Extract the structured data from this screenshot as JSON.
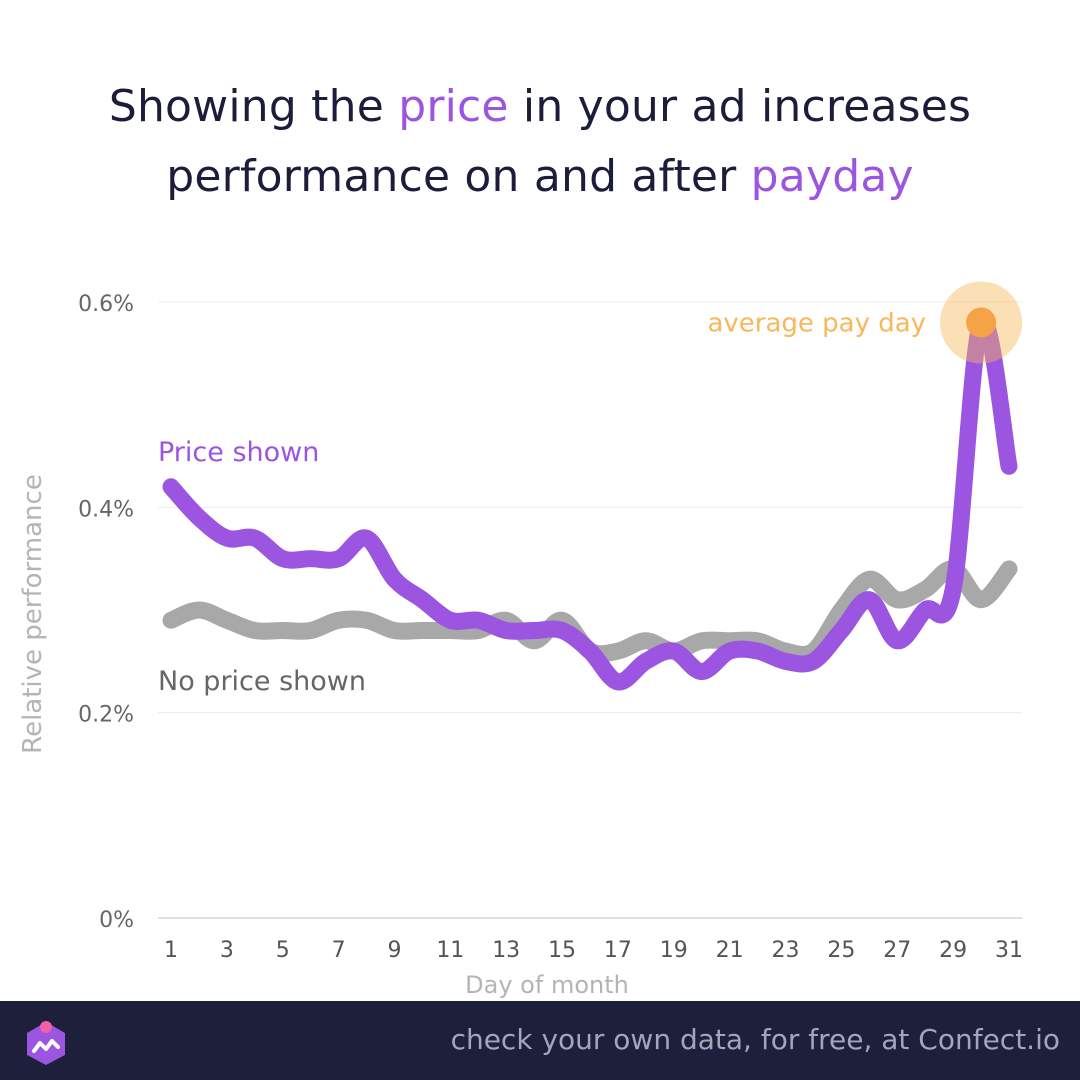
{
  "title": {
    "part1": "Showing the ",
    "accent1": "price",
    "part2": " in your ad increases",
    "part3": "performance on and after ",
    "accent2": "payday"
  },
  "colors": {
    "price_series": "#9b55e0",
    "no_price_series": "#a8a8a8",
    "highlight": "#f7b85a",
    "title_text": "#1c1d3a",
    "footer_bg": "#1d1f3b"
  },
  "chart_data": {
    "type": "line",
    "title": "Showing the price in your ad increases performance on and after payday",
    "xlabel": "Day of month",
    "ylabel": "Relative performance",
    "xlim": [
      1,
      31
    ],
    "ylim": [
      0,
      0.6
    ],
    "y_ticks": [
      0,
      0.2,
      0.4,
      0.6
    ],
    "y_tick_labels": [
      "0%",
      "0.2%",
      "0.4%",
      "0.6%"
    ],
    "x_ticks": [
      1,
      3,
      5,
      7,
      9,
      11,
      13,
      15,
      17,
      19,
      21,
      23,
      25,
      27,
      29,
      31
    ],
    "x_tick_labels": [
      "1",
      "3",
      "5",
      "7",
      "9",
      "11",
      "13",
      "15",
      "17",
      "19",
      "21",
      "23",
      "25",
      "27",
      "29",
      "31"
    ],
    "grid": true,
    "x": [
      1,
      2,
      3,
      4,
      5,
      6,
      7,
      8,
      9,
      10,
      11,
      12,
      13,
      14,
      15,
      16,
      17,
      18,
      19,
      20,
      21,
      22,
      23,
      24,
      25,
      26,
      27,
      28,
      29,
      30,
      31
    ],
    "series": [
      {
        "name": "No price shown",
        "values": [
          0.29,
          0.3,
          0.29,
          0.28,
          0.28,
          0.28,
          0.29,
          0.29,
          0.28,
          0.28,
          0.28,
          0.28,
          0.29,
          0.27,
          0.29,
          0.26,
          0.26,
          0.27,
          0.26,
          0.27,
          0.27,
          0.27,
          0.26,
          0.26,
          0.3,
          0.33,
          0.31,
          0.32,
          0.34,
          0.31,
          0.34
        ]
      },
      {
        "name": "Price shown",
        "values": [
          0.42,
          0.39,
          0.37,
          0.37,
          0.35,
          0.35,
          0.35,
          0.37,
          0.33,
          0.31,
          0.29,
          0.29,
          0.28,
          0.28,
          0.28,
          0.26,
          0.23,
          0.25,
          0.26,
          0.24,
          0.26,
          0.26,
          0.25,
          0.25,
          0.28,
          0.31,
          0.27,
          0.3,
          0.32,
          0.58,
          0.44
        ]
      }
    ],
    "annotations": [
      {
        "text": "average pay day",
        "x": 30,
        "y": 0.58
      }
    ]
  },
  "footer": {
    "text": "check your own data, for free, at Confect.io",
    "logo_icon": "confect-logo-icon"
  }
}
